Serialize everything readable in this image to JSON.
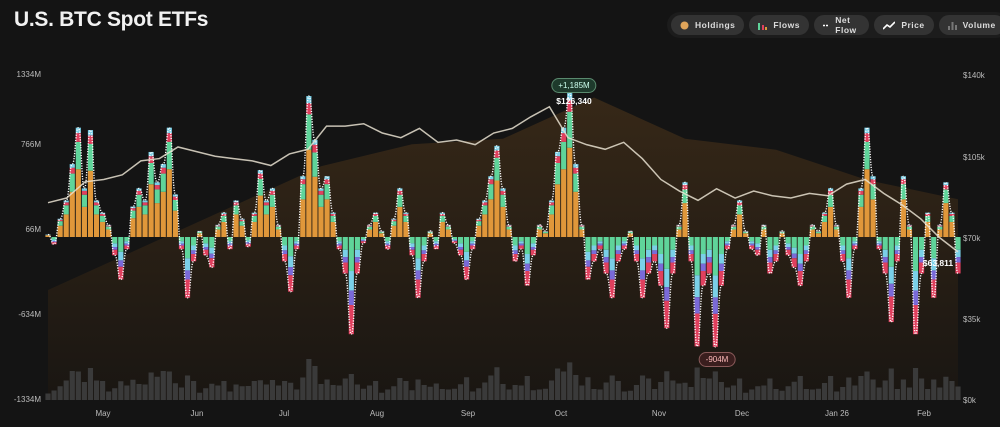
{
  "title": "U.S. BTC Spot ETFs",
  "legend": [
    {
      "label": "Holdings",
      "icon": "dot-icon",
      "color": "#e0a55a"
    },
    {
      "label": "Flows",
      "icon": "bars-icon",
      "color": "#5fd49a"
    },
    {
      "label": "Net Flow",
      "icon": "dash-icon",
      "color": "#ffffff"
    },
    {
      "label": "Price",
      "icon": "line-icon",
      "color": "#ffffff"
    },
    {
      "label": "Volume",
      "icon": "volume-icon",
      "color": "#777777"
    }
  ],
  "colors": {
    "background": "#141414",
    "holdings": "#e0973a",
    "green": "#5fd49a",
    "red": "#e0405e",
    "blue": "#7ad0e8",
    "purple": "#7a6ad8",
    "price": "#e8e0d0",
    "volume": "#3a3a3a"
  },
  "annotations": {
    "max_flow": "+1,185M",
    "min_flow": "-904M",
    "price_high": "$126,340",
    "price_last": "$63,811"
  },
  "chart_data": {
    "type": "bar",
    "title": "U.S. BTC Spot ETFs",
    "left_axis": {
      "ticks": [
        "1334M",
        "766M",
        "66M",
        "-634M",
        "-1334M"
      ],
      "range_musd": [
        -1334,
        1334
      ]
    },
    "right_axis": {
      "ticks": [
        "$140k",
        "$105k",
        "$70k",
        "$35k",
        "$0k"
      ],
      "range_kusd": [
        0,
        140
      ]
    },
    "x_ticks": [
      "May",
      "Jun",
      "Jul",
      "Aug",
      "Sep",
      "Oct",
      "Nov",
      "Dec",
      "Jan 26",
      "Feb"
    ],
    "grid": false,
    "legend_position": "top-right",
    "flows_musd": [
      20,
      -60,
      150,
      300,
      600,
      900,
      400,
      880,
      300,
      200,
      100,
      -150,
      -350,
      -100,
      250,
      400,
      300,
      700,
      450,
      600,
      900,
      350,
      -100,
      -500,
      -200,
      50,
      -150,
      -250,
      100,
      200,
      -100,
      300,
      150,
      -80,
      200,
      550,
      300,
      400,
      100,
      -200,
      -450,
      -100,
      500,
      1160,
      800,
      400,
      500,
      200,
      -100,
      -300,
      -800,
      -300,
      -50,
      100,
      200,
      50,
      -100,
      150,
      400,
      200,
      -150,
      -500,
      -200,
      50,
      -100,
      200,
      100,
      -50,
      -150,
      -350,
      -100,
      150,
      300,
      500,
      750,
      400,
      100,
      -200,
      -100,
      -400,
      -150,
      100,
      50,
      300,
      700,
      900,
      1185,
      600,
      100,
      -350,
      -200,
      -100,
      -300,
      -500,
      -200,
      -100,
      50,
      -200,
      -500,
      -300,
      -200,
      -400,
      -750,
      -300,
      100,
      450,
      -200,
      -900,
      -400,
      -300,
      -904,
      -400,
      -100,
      100,
      300,
      50,
      -100,
      -150,
      100,
      -300,
      -200,
      50,
      -150,
      -250,
      -400,
      -200,
      100,
      50,
      200,
      400,
      100,
      -200,
      -500,
      -100,
      400,
      900,
      500,
      -100,
      -300,
      -700,
      -200,
      500,
      100,
      -800,
      -300,
      200,
      -500,
      100,
      450,
      200,
      -300
    ],
    "price_kusd": [
      85,
      87,
      94,
      95,
      97,
      103,
      104,
      109,
      107,
      105,
      104,
      103,
      101,
      106,
      108,
      118,
      118,
      119,
      115,
      113,
      117,
      111,
      112,
      110,
      115,
      117,
      122,
      126.34,
      113,
      110,
      108,
      111,
      104,
      95,
      90,
      86,
      91,
      87,
      90,
      88,
      87,
      89,
      88,
      93,
      95,
      89,
      84,
      78,
      70,
      63.811
    ],
    "holdings_busd": [
      95,
      110,
      125,
      140,
      148,
      150,
      165,
      150,
      146,
      135,
      128
    ]
  }
}
